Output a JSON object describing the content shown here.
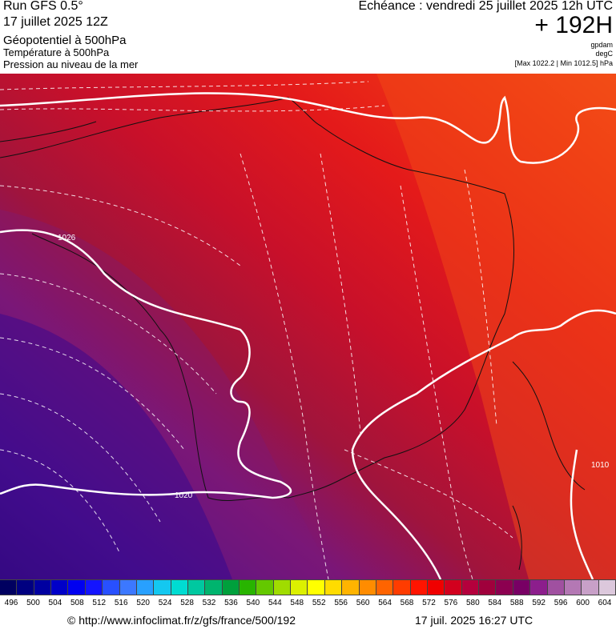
{
  "header": {
    "model": "Run GFS 0.5°",
    "run": "17 juillet 2025 12Z",
    "field1": "Géopotentiel à 500hPa",
    "field2": "Température à 500hPa",
    "field3": "Pression au niveau de la mer",
    "echeance": "Echéance : vendredi 25 juillet 2025 12h UTC",
    "lead": "+ 192H",
    "unit1": "gpdam",
    "unit2": "degC",
    "minmax": "[Max 1022.2 | Min 1012.5] hPa"
  },
  "isobar_labels": [
    "1026",
    "1020",
    "1010"
  ],
  "colors": {
    "deep_purple": "#3c0a8c",
    "purple": "#5a1a9a",
    "magenta": "#8a1a78",
    "crimson": "#a8143a",
    "red_dark": "#c8102a",
    "red": "#e21a1a",
    "red_orange": "#f03a14",
    "orange": "#f76018"
  },
  "scale": {
    "labels": [
      "496",
      "500",
      "504",
      "508",
      "512",
      "516",
      "520",
      "524",
      "528",
      "532",
      "536",
      "540",
      "544",
      "548",
      "552",
      "556",
      "560",
      "564",
      "568",
      "572",
      "576",
      "580",
      "584",
      "588",
      "592",
      "596",
      "600",
      "604"
    ],
    "colors": [
      "#000060",
      "#000080",
      "#0000a0",
      "#0000c8",
      "#0000f0",
      "#1414ff",
      "#2850ff",
      "#3c78ff",
      "#28a0ff",
      "#14c8f0",
      "#00dcd2",
      "#00c8a0",
      "#00b46e",
      "#00a03c",
      "#28b400",
      "#64c800",
      "#a0dc00",
      "#dcf000",
      "#ffff00",
      "#ffdc00",
      "#ffb400",
      "#ff8c00",
      "#ff6400",
      "#ff3c00",
      "#ff1400",
      "#f00000",
      "#d2001e",
      "#b4003c",
      "#a0003c",
      "#8c0050",
      "#780064",
      "#8c1e8c",
      "#a050a0",
      "#b478b4",
      "#c8a0c8",
      "#dcc8dc"
    ]
  },
  "footer": {
    "url": "© http://www.infoclimat.fr/z/gfs/france/500/192",
    "generated": "17 juil. 2025 16:27 UTC"
  }
}
